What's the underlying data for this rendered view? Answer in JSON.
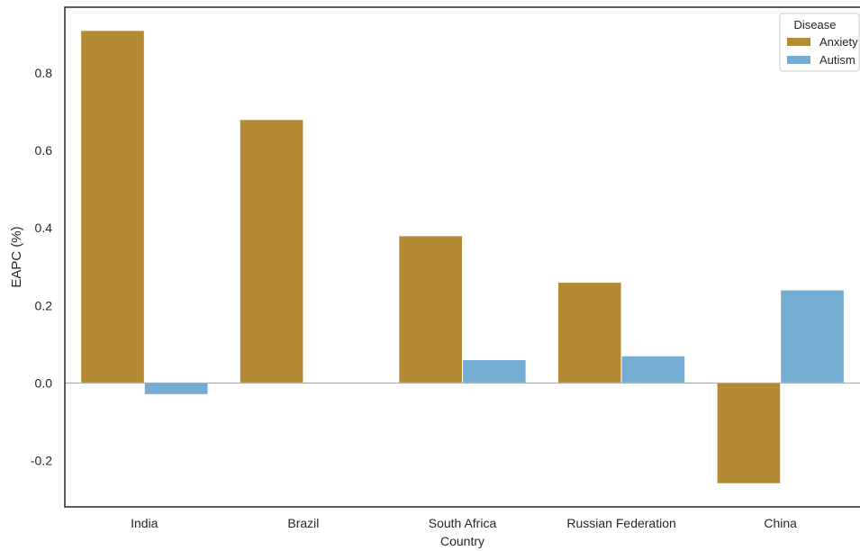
{
  "chart_data": {
    "type": "bar",
    "title": "",
    "xlabel": "Country",
    "ylabel": "EAPC (%)",
    "categories": [
      "India",
      "Brazil",
      "South Africa",
      "Russian Federation",
      "China"
    ],
    "series": [
      {
        "name": "Anxiety",
        "values": [
          0.91,
          0.68,
          0.38,
          0.26,
          -0.26
        ]
      },
      {
        "name": "Autism",
        "values": [
          -0.03,
          0.0,
          0.06,
          0.07,
          0.24
        ]
      }
    ],
    "ylim": [
      -0.32,
      0.97
    ],
    "yticks": [
      -0.2,
      0.0,
      0.2,
      0.4,
      0.6,
      0.8
    ],
    "ytick_labels": [
      "-0.2",
      "0.0",
      "0.2",
      "0.4",
      "0.6",
      "0.8"
    ],
    "legend": {
      "title": "Disease",
      "position": "top-right"
    },
    "grid": false,
    "colors": {
      "Anxiety": "#b58a35",
      "Autism": "#74add1"
    }
  }
}
